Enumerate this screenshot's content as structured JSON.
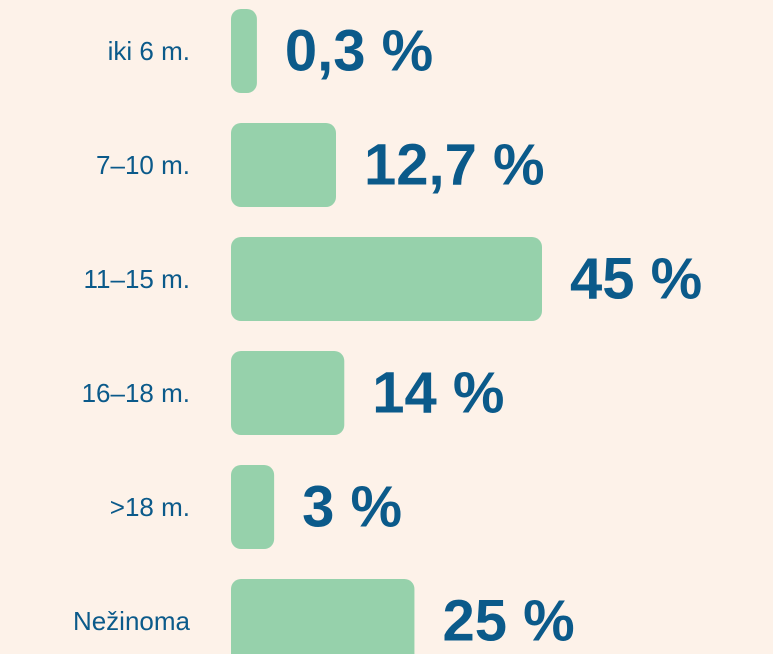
{
  "chart_data": {
    "type": "bar",
    "orientation": "horizontal",
    "categories": [
      "iki 6 m.",
      "7–10 m.",
      "11–15 m.",
      "16–18 m.",
      ">18 m.",
      "Nežinoma"
    ],
    "values": [
      0.3,
      12.7,
      45,
      14,
      3,
      25
    ],
    "value_labels": [
      "0,3 %",
      "12,7 %",
      "45 %",
      "14 %",
      "3 %",
      "25 %"
    ],
    "color": "#96d1ab",
    "label_color": "#0b5a8a"
  }
}
